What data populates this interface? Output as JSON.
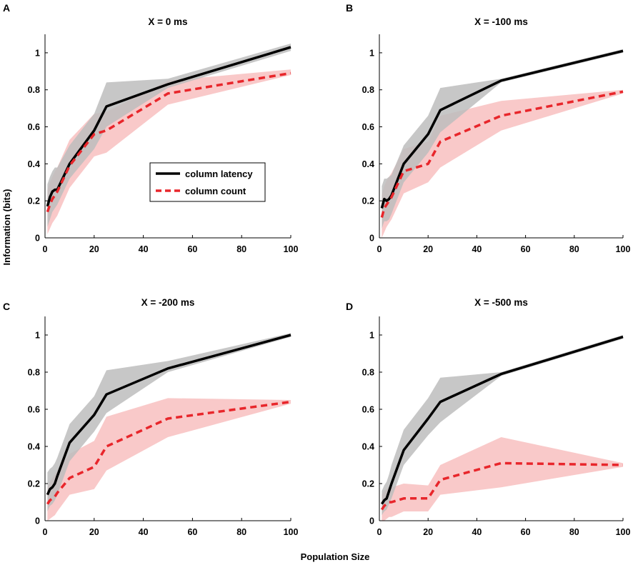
{
  "figure": {
    "xlabel": "Population Size",
    "ylabel": "Information (bits)",
    "legend": {
      "placement": "inside-panel-A",
      "entries": [
        {
          "label": "column latency",
          "color": "#000000",
          "style": "solid"
        },
        {
          "label": "column count",
          "color": "#e8262b",
          "style": "dashed"
        }
      ]
    },
    "colors": {
      "latency_line": "#000000",
      "latency_band": "#bdbdbd",
      "count_line": "#e8262b",
      "count_band": "#f7b7b7"
    }
  },
  "chart_data": [
    {
      "panel": "A",
      "type": "line",
      "title": "X = 0 ms",
      "xlim": [
        0,
        100
      ],
      "ylim": [
        0,
        1.1
      ],
      "xticks": [
        "0",
        "20",
        "40",
        "60",
        "80",
        "100"
      ],
      "yticks": [
        "0",
        "0.2",
        "0.4",
        "0.6",
        "0.8",
        "1"
      ],
      "x": [
        1,
        2,
        3,
        4,
        5,
        10,
        20,
        25,
        50,
        100
      ],
      "series": [
        {
          "name": "column latency",
          "values": [
            0.17,
            0.22,
            0.25,
            0.26,
            0.26,
            0.4,
            0.58,
            0.71,
            0.83,
            1.03
          ],
          "lower": [
            0.06,
            0.1,
            0.14,
            0.16,
            0.18,
            0.32,
            0.48,
            0.6,
            0.81,
            1.01
          ],
          "upper": [
            0.29,
            0.33,
            0.36,
            0.38,
            0.38,
            0.5,
            0.67,
            0.84,
            0.86,
            1.05
          ]
        },
        {
          "name": "column count",
          "values": [
            0.14,
            0.18,
            0.21,
            0.23,
            0.25,
            0.39,
            0.56,
            0.58,
            0.78,
            0.89
          ],
          "lower": [
            0.02,
            0.05,
            0.08,
            0.1,
            0.12,
            0.27,
            0.44,
            0.46,
            0.72,
            0.88
          ],
          "upper": [
            0.26,
            0.3,
            0.33,
            0.36,
            0.38,
            0.53,
            0.67,
            0.68,
            0.85,
            0.91
          ]
        }
      ]
    },
    {
      "panel": "B",
      "type": "line",
      "title": "X = -100 ms",
      "xlim": [
        0,
        100
      ],
      "ylim": [
        0,
        1.1
      ],
      "xticks": [
        "0",
        "20",
        "40",
        "60",
        "80",
        "100"
      ],
      "yticks": [
        "0",
        "0.2",
        "0.4",
        "0.6",
        "0.8",
        "1"
      ],
      "x": [
        1,
        2,
        3,
        4,
        5,
        10,
        20,
        25,
        50,
        100
      ],
      "series": [
        {
          "name": "column latency",
          "values": [
            0.16,
            0.21,
            0.2,
            0.21,
            0.23,
            0.4,
            0.56,
            0.69,
            0.85,
            1.01
          ],
          "lower": [
            0.05,
            0.09,
            0.09,
            0.1,
            0.13,
            0.3,
            0.46,
            0.57,
            0.84,
            1.0
          ],
          "upper": [
            0.28,
            0.32,
            0.32,
            0.33,
            0.34,
            0.5,
            0.66,
            0.81,
            0.86,
            1.02
          ]
        },
        {
          "name": "column count",
          "values": [
            0.11,
            0.16,
            0.18,
            0.2,
            0.22,
            0.36,
            0.4,
            0.52,
            0.66,
            0.79
          ],
          "lower": [
            0.0,
            0.03,
            0.06,
            0.08,
            0.1,
            0.24,
            0.3,
            0.38,
            0.58,
            0.78
          ],
          "upper": [
            0.23,
            0.28,
            0.31,
            0.33,
            0.35,
            0.48,
            0.52,
            0.66,
            0.74,
            0.8
          ]
        }
      ]
    },
    {
      "panel": "C",
      "type": "line",
      "title": "X = -200 ms",
      "xlim": [
        0,
        100
      ],
      "ylim": [
        0,
        1.1
      ],
      "xticks": [
        "0",
        "20",
        "40",
        "60",
        "80",
        "100"
      ],
      "yticks": [
        "0",
        "0.2",
        "0.4",
        "0.6",
        "0.8",
        "1"
      ],
      "x": [
        1,
        2,
        3,
        4,
        5,
        10,
        20,
        25,
        50,
        100
      ],
      "series": [
        {
          "name": "column latency",
          "values": [
            0.14,
            0.17,
            0.18,
            0.2,
            0.24,
            0.42,
            0.57,
            0.68,
            0.82,
            1.0
          ],
          "lower": [
            0.05,
            0.08,
            0.09,
            0.11,
            0.14,
            0.32,
            0.48,
            0.58,
            0.8,
            0.99
          ],
          "upper": [
            0.26,
            0.28,
            0.29,
            0.31,
            0.34,
            0.52,
            0.67,
            0.81,
            0.86,
            1.01
          ]
        },
        {
          "name": "column count",
          "values": [
            0.09,
            0.11,
            0.12,
            0.13,
            0.15,
            0.23,
            0.29,
            0.4,
            0.55,
            0.64
          ],
          "lower": [
            0.0,
            0.01,
            0.02,
            0.03,
            0.05,
            0.14,
            0.17,
            0.27,
            0.45,
            0.63
          ],
          "upper": [
            0.18,
            0.21,
            0.23,
            0.25,
            0.27,
            0.36,
            0.43,
            0.56,
            0.66,
            0.65
          ]
        }
      ]
    },
    {
      "panel": "D",
      "type": "line",
      "title": "X = -500 ms",
      "xlim": [
        0,
        100
      ],
      "ylim": [
        0,
        1.1
      ],
      "xticks": [
        "0",
        "20",
        "40",
        "60",
        "80",
        "100"
      ],
      "yticks": [
        "0",
        "0.2",
        "0.4",
        "0.6",
        "0.8",
        "1"
      ],
      "x": [
        1,
        2,
        3,
        4,
        5,
        10,
        20,
        25,
        50,
        100
      ],
      "series": [
        {
          "name": "column latency",
          "values": [
            0.09,
            0.11,
            0.12,
            0.16,
            0.2,
            0.38,
            0.55,
            0.64,
            0.79,
            0.99
          ],
          "lower": [
            0.03,
            0.05,
            0.06,
            0.09,
            0.12,
            0.3,
            0.46,
            0.53,
            0.78,
            0.98
          ],
          "upper": [
            0.16,
            0.19,
            0.21,
            0.25,
            0.3,
            0.49,
            0.66,
            0.77,
            0.8,
            1.0
          ]
        },
        {
          "name": "column count",
          "values": [
            0.06,
            0.08,
            0.09,
            0.1,
            0.1,
            0.12,
            0.12,
            0.22,
            0.31,
            0.3
          ],
          "lower": [
            0.0,
            0.0,
            0.01,
            0.02,
            0.02,
            0.05,
            0.05,
            0.14,
            0.18,
            0.29
          ],
          "upper": [
            0.14,
            0.16,
            0.17,
            0.18,
            0.18,
            0.2,
            0.19,
            0.3,
            0.45,
            0.31
          ]
        }
      ]
    }
  ]
}
